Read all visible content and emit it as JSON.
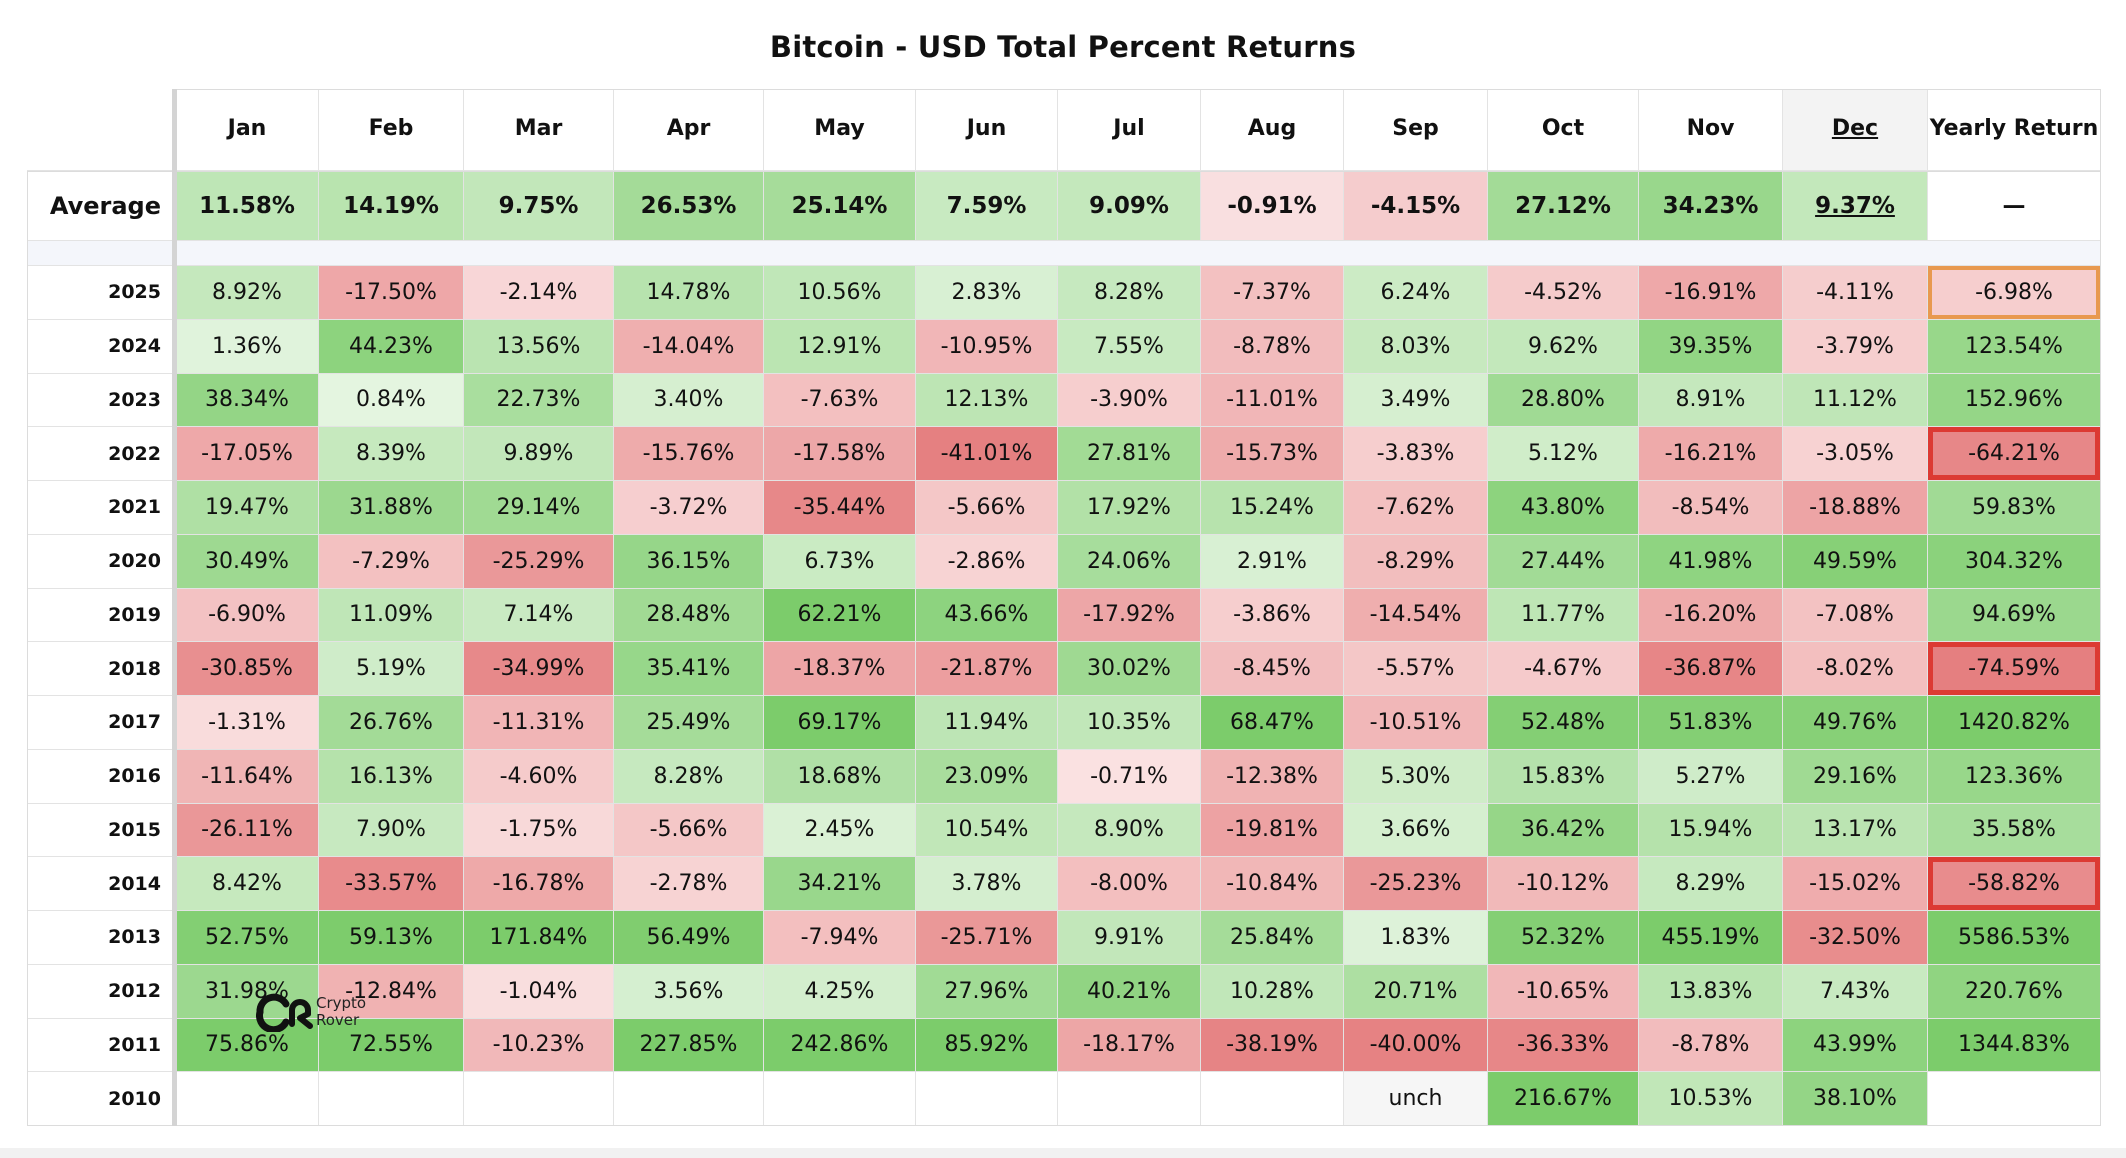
{
  "chart_data": {
    "type": "table",
    "title": "Bitcoin - USD Total Percent Returns",
    "columns": [
      "Jan",
      "Feb",
      "Mar",
      "Apr",
      "May",
      "Jun",
      "Jul",
      "Aug",
      "Sep",
      "Oct",
      "Nov",
      "Dec",
      "Yearly Return"
    ],
    "average": {
      "label": "Average",
      "values": [
        "11.58%",
        "14.19%",
        "9.75%",
        "26.53%",
        "25.14%",
        "7.59%",
        "9.09%",
        "-0.91%",
        "-4.15%",
        "27.12%",
        "34.23%",
        "9.37%",
        "—"
      ]
    },
    "rows": [
      {
        "year": "2025",
        "values": [
          "8.92%",
          "-17.50%",
          "-2.14%",
          "14.78%",
          "10.56%",
          "2.83%",
          "8.28%",
          "-7.37%",
          "6.24%",
          "-4.52%",
          "-16.91%",
          "-4.11%",
          "-6.98%"
        ]
      },
      {
        "year": "2024",
        "values": [
          "1.36%",
          "44.23%",
          "13.56%",
          "-14.04%",
          "12.91%",
          "-10.95%",
          "7.55%",
          "-8.78%",
          "8.03%",
          "9.62%",
          "39.35%",
          "-3.79%",
          "123.54%"
        ]
      },
      {
        "year": "2023",
        "values": [
          "38.34%",
          "0.84%",
          "22.73%",
          "3.40%",
          "-7.63%",
          "12.13%",
          "-3.90%",
          "-11.01%",
          "3.49%",
          "28.80%",
          "8.91%",
          "11.12%",
          "152.96%"
        ]
      },
      {
        "year": "2022",
        "values": [
          "-17.05%",
          "8.39%",
          "9.89%",
          "-15.76%",
          "-17.58%",
          "-41.01%",
          "27.81%",
          "-15.73%",
          "-3.83%",
          "5.12%",
          "-16.21%",
          "-3.05%",
          "-64.21%"
        ]
      },
      {
        "year": "2021",
        "values": [
          "19.47%",
          "31.88%",
          "29.14%",
          "-3.72%",
          "-35.44%",
          "-5.66%",
          "17.92%",
          "15.24%",
          "-7.62%",
          "43.80%",
          "-8.54%",
          "-18.88%",
          "59.83%"
        ]
      },
      {
        "year": "2020",
        "values": [
          "30.49%",
          "-7.29%",
          "-25.29%",
          "36.15%",
          "6.73%",
          "-2.86%",
          "24.06%",
          "2.91%",
          "-8.29%",
          "27.44%",
          "41.98%",
          "49.59%",
          "304.32%"
        ]
      },
      {
        "year": "2019",
        "values": [
          "-6.90%",
          "11.09%",
          "7.14%",
          "28.48%",
          "62.21%",
          "43.66%",
          "-17.92%",
          "-3.86%",
          "-14.54%",
          "11.77%",
          "-16.20%",
          "-7.08%",
          "94.69%"
        ]
      },
      {
        "year": "2018",
        "values": [
          "-30.85%",
          "5.19%",
          "-34.99%",
          "35.41%",
          "-18.37%",
          "-21.87%",
          "30.02%",
          "-8.45%",
          "-5.57%",
          "-4.67%",
          "-36.87%",
          "-8.02%",
          "-74.59%"
        ]
      },
      {
        "year": "2017",
        "values": [
          "-1.31%",
          "26.76%",
          "-11.31%",
          "25.49%",
          "69.17%",
          "11.94%",
          "10.35%",
          "68.47%",
          "-10.51%",
          "52.48%",
          "51.83%",
          "49.76%",
          "1420.82%"
        ]
      },
      {
        "year": "2016",
        "values": [
          "-11.64%",
          "16.13%",
          "-4.60%",
          "8.28%",
          "18.68%",
          "23.09%",
          "-0.71%",
          "-12.38%",
          "5.30%",
          "15.83%",
          "5.27%",
          "29.16%",
          "123.36%"
        ]
      },
      {
        "year": "2015",
        "values": [
          "-26.11%",
          "7.90%",
          "-1.75%",
          "-5.66%",
          "2.45%",
          "10.54%",
          "8.90%",
          "-19.81%",
          "3.66%",
          "36.42%",
          "15.94%",
          "13.17%",
          "35.58%"
        ]
      },
      {
        "year": "2014",
        "values": [
          "8.42%",
          "-33.57%",
          "-16.78%",
          "-2.78%",
          "34.21%",
          "3.78%",
          "-8.00%",
          "-10.84%",
          "-25.23%",
          "-10.12%",
          "8.29%",
          "-15.02%",
          "-58.82%"
        ]
      },
      {
        "year": "2013",
        "values": [
          "52.75%",
          "59.13%",
          "171.84%",
          "56.49%",
          "-7.94%",
          "-25.71%",
          "9.91%",
          "25.84%",
          "1.83%",
          "52.32%",
          "455.19%",
          "-32.50%",
          "5586.53%"
        ]
      },
      {
        "year": "2012",
        "values": [
          "31.98%",
          "-12.84%",
          "-1.04%",
          "3.56%",
          "4.25%",
          "27.96%",
          "40.21%",
          "10.28%",
          "20.71%",
          "-10.65%",
          "13.83%",
          "7.43%",
          "220.76%"
        ]
      },
      {
        "year": "2011",
        "values": [
          "75.86%",
          "72.55%",
          "-10.23%",
          "227.85%",
          "242.86%",
          "85.92%",
          "-18.17%",
          "-38.19%",
          "-40.00%",
          "-36.33%",
          "-8.78%",
          "43.99%",
          "1344.83%"
        ]
      },
      {
        "year": "2010",
        "values": [
          "",
          "",
          "",
          "",
          "",
          "",
          "",
          "",
          "unch",
          "216.67%",
          "10.53%",
          "38.10%",
          ""
        ]
      }
    ],
    "highlighted_yearly": [
      {
        "year": "2025",
        "color": "#e8994f"
      },
      {
        "year": "2022",
        "color": "#dc3a33"
      },
      {
        "year": "2018",
        "color": "#dc3a33"
      },
      {
        "year": "2014",
        "color": "#dc3a33"
      }
    ]
  },
  "watermark": {
    "text_line1": "Crypto",
    "text_line2": "Rover"
  },
  "colors": {
    "pos_light": "#f2faf0",
    "pos_dark": "#7ccc6b",
    "neg_light": "#fdf0f0",
    "neg_dark": "#e57f80",
    "neutral": "#ffffff",
    "header_dec": "#f3f3f3",
    "unch": "#f6f6f6"
  }
}
